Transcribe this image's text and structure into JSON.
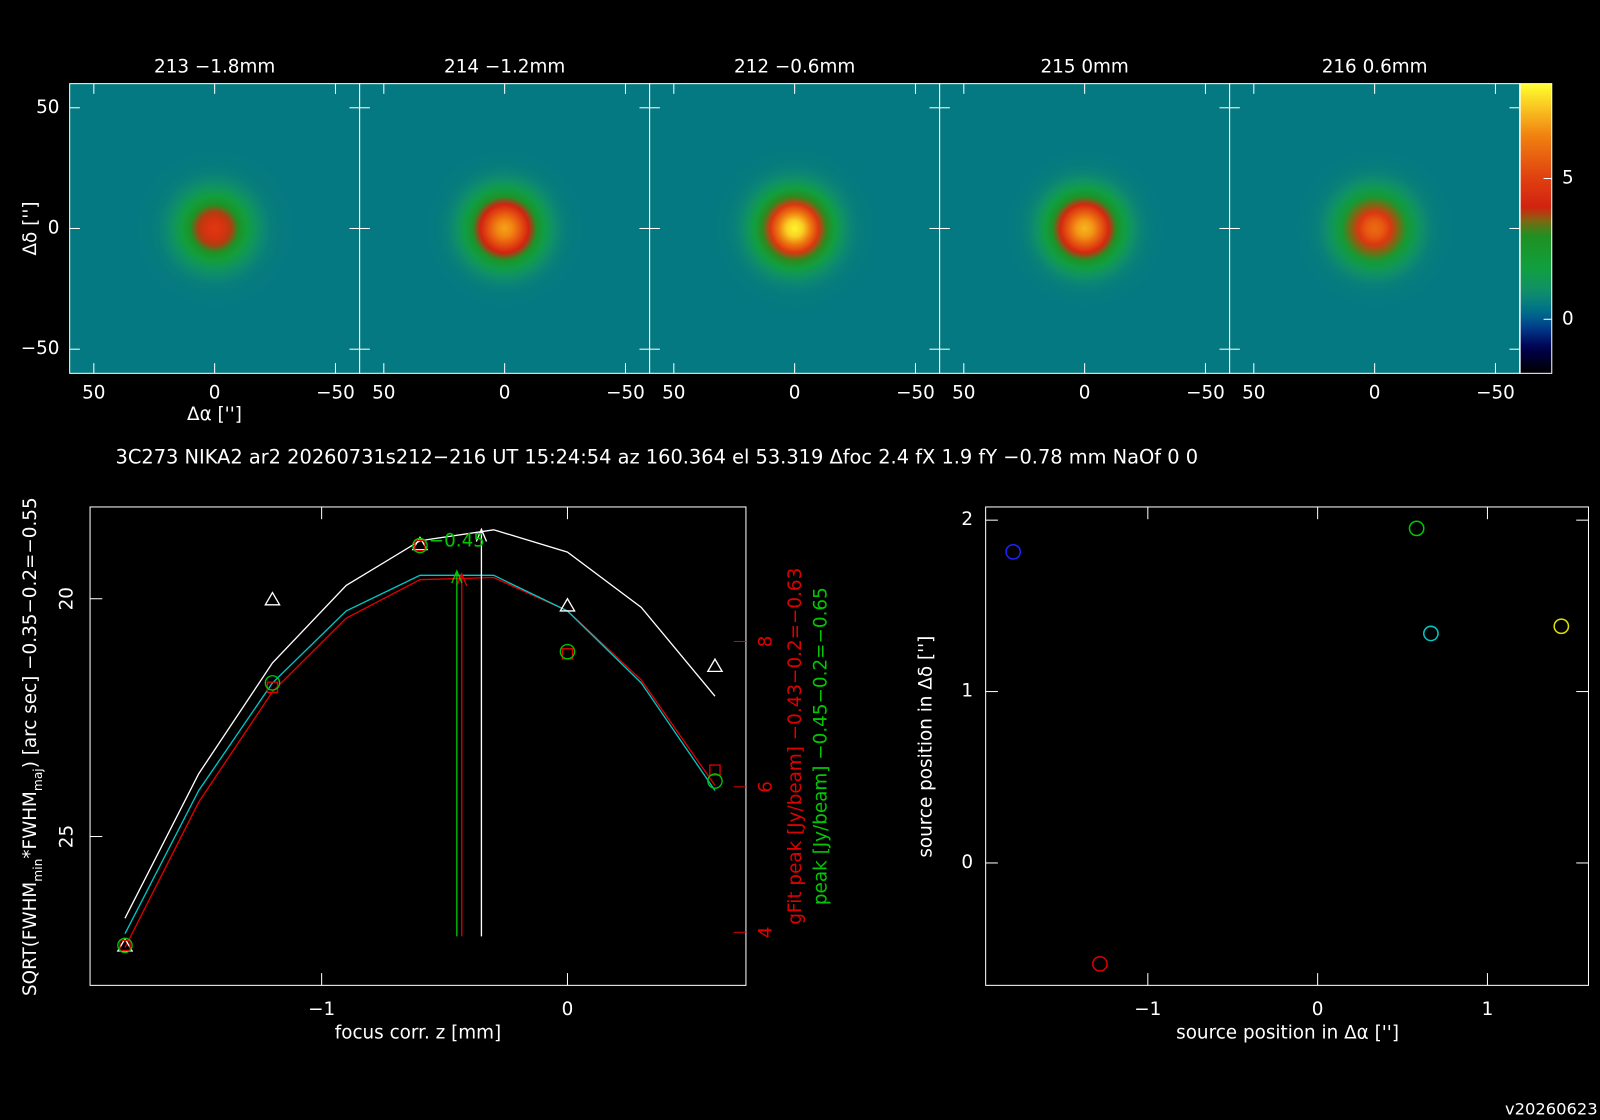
{
  "chart_data": [
    {
      "type": "image",
      "panels": [
        {
          "title": "213 −1.8mm",
          "peak": 4.8
        },
        {
          "title": "214 −1.2mm",
          "peak": 7.0
        },
        {
          "title": "212 −0.6mm",
          "peak": 8.2
        },
        {
          "title": "215 0mm",
          "peak": 7.3
        },
        {
          "title": "216 0.6mm",
          "peak": 6.0
        }
      ],
      "xlim": [
        60,
        -60
      ],
      "ylim": [
        -60,
        60
      ],
      "xticks": [
        50,
        0,
        {
          "value": -50,
          "label": "−50"
        }
      ],
      "yticks": [
        {
          "value": -50,
          "label": "−50"
        },
        0,
        50
      ],
      "xlabel": "Δα ['']",
      "ylabel": "Δδ ['']",
      "clim": [
        -1.92,
        8.37
      ],
      "cticks": [
        0,
        5
      ]
    },
    {
      "type": "focus",
      "title": "3C273 NIKA2 ar2 20260731s212−216 UT 15:24:54 az 160.364 el 53.319 Δfoc 2.4 fX 1.9 fY −0.78 mm NaOf 0 0",
      "x": [
        -1.8,
        -1.2,
        -0.6,
        0,
        0.6
      ],
      "xlim": [
        -1.942,
        0.726
      ],
      "xticks": [
        {
          "value": -1,
          "label": "−1"
        },
        0
      ],
      "ylim": [
        28.13,
        18.07
      ],
      "yticks": [
        20,
        25
      ],
      "y2lim": [
        3.27,
        9.85
      ],
      "y2ticks": [
        4,
        6,
        8
      ],
      "xlabel": "focus corr. z [mm]",
      "ylabel": [
        "SQRT(FWHM",
        "min",
        "*FWHM",
        "maj",
        ") [arc sec] −0.35−0.2=−0.55"
      ],
      "y2labels": [
        {
          "text": "gFit peak [Jy/beam] −0.43−0.2=−0.63",
          "color": "#e00000"
        },
        {
          "text": "peak [Jy/beam] −0.45−0.2=−0.65",
          "color": "#00c800"
        }
      ],
      "series": [
        {
          "color": "#ffffff",
          "marker": "triangle",
          "axis": "y",
          "values": [
            27.3,
            20.02,
            18.86,
            20.15,
            21.42
          ]
        },
        {
          "color": "#e00000",
          "marker": "square",
          "axis": "y2",
          "values": [
            3.82,
            7.37,
            9.32,
            7.83,
            6.23
          ]
        },
        {
          "color": "#00c800",
          "marker": "circle",
          "axis": "y2",
          "values": [
            3.82,
            7.43,
            9.32,
            7.86,
            6.08
          ]
        }
      ],
      "fit_x": [
        -1.8,
        -1.5,
        -1.2,
        -0.9,
        -0.6,
        -0.3,
        0,
        0.3,
        0.6
      ],
      "fits": [
        {
          "color": "#ffffff",
          "axis": "y",
          "values": [
            26.72,
            23.68,
            21.35,
            19.72,
            18.78,
            18.55,
            19.02,
            20.18,
            22.05
          ]
        },
        {
          "color": "#e00000",
          "axis": "y2",
          "values": [
            3.79,
            5.79,
            7.31,
            8.32,
            8.85,
            8.88,
            8.42,
            7.47,
            6.02
          ]
        },
        {
          "color": "#00c8c8",
          "axis": "y2",
          "values": [
            3.98,
            5.95,
            7.43,
            8.42,
            8.91,
            8.91,
            8.42,
            7.43,
            5.95
          ]
        }
      ],
      "best": [
        {
          "value": -0.35,
          "peak": 18.54,
          "axis": "y",
          "color": "#ffffff"
        },
        {
          "value": -0.43,
          "peak": 8.93,
          "axis": "y2",
          "color": "#e00000"
        },
        {
          "value": -0.45,
          "peak": 8.97,
          "axis": "y2",
          "color": "#00c800",
          "label": "−0.45"
        }
      ]
    },
    {
      "type": "scatter",
      "x": [
        -1.793,
        -1.282,
        0.583,
        0.667,
        1.435
      ],
      "y": [
        1.815,
        -0.589,
        1.952,
        1.339,
        1.381
      ],
      "colors": [
        "#2020ff",
        "#e00000",
        "#00c800",
        "#00c8c8",
        "#e0e000"
      ],
      "xlim": [
        -1.955,
        1.595
      ],
      "xticks": [
        {
          "value": -1,
          "label": "−1"
        },
        0,
        1
      ],
      "ylim": [
        -0.714,
        2.077
      ],
      "yticks": [
        0,
        1,
        2
      ],
      "xlabel": "source position in Δα ['']",
      "ylabel": "source position in Δδ ['']"
    }
  ],
  "footer": "v20260623"
}
